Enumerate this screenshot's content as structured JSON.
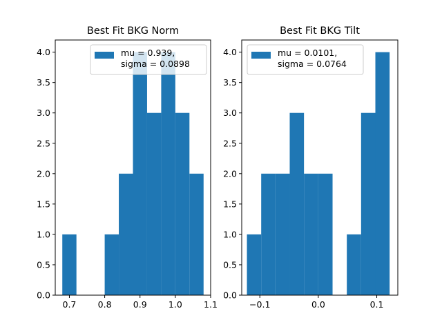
{
  "chart_data": [
    {
      "type": "bar",
      "title": "Best Fit BKG Norm",
      "xlabel": "",
      "ylabel": "",
      "xlim": [
        0.66,
        1.1
      ],
      "ylim": [
        0,
        4.2
      ],
      "xticks": [
        {
          "value": 0.7,
          "label": "0.7"
        },
        {
          "value": 0.8,
          "label": "0.8"
        },
        {
          "value": 0.9,
          "label": "0.9"
        },
        {
          "value": 1.0,
          "label": "1.0"
        },
        {
          "value": 1.1,
          "label": "1.1"
        }
      ],
      "yticks": [
        {
          "value": 0.0,
          "label": "0.0"
        },
        {
          "value": 0.5,
          "label": "0.5"
        },
        {
          "value": 1.0,
          "label": "1.0"
        },
        {
          "value": 1.5,
          "label": "1.5"
        },
        {
          "value": 2.0,
          "label": "2.0"
        },
        {
          "value": 2.5,
          "label": "2.5"
        },
        {
          "value": 3.0,
          "label": "3.0"
        },
        {
          "value": 3.5,
          "label": "3.5"
        },
        {
          "value": 4.0,
          "label": "4.0"
        }
      ],
      "bin_edges": [
        0.68,
        0.72,
        0.76,
        0.8,
        0.84,
        0.88,
        0.92,
        0.96,
        1.0,
        1.04,
        1.08
      ],
      "counts": [
        1,
        0,
        0,
        1,
        2,
        4,
        3,
        4,
        3,
        2
      ],
      "bar_color": "#1f77b4",
      "legend": {
        "position": "upper right",
        "lines": [
          "mu = 0.939,",
          "sigma = 0.0898"
        ]
      }
    },
    {
      "type": "bar",
      "title": "Best Fit BKG Tilt",
      "xlabel": "",
      "ylabel": "",
      "xlim": [
        -0.131,
        0.136
      ],
      "ylim": [
        0,
        4.2
      ],
      "xticks": [
        {
          "value": -0.1,
          "label": "−0.1"
        },
        {
          "value": 0.0,
          "label": "0.0"
        },
        {
          "value": 0.1,
          "label": "0.1"
        }
      ],
      "yticks": [
        {
          "value": 0.0,
          "label": "0.0"
        },
        {
          "value": 0.5,
          "label": "0.5"
        },
        {
          "value": 1.0,
          "label": "1.0"
        },
        {
          "value": 1.5,
          "label": "1.5"
        },
        {
          "value": 2.0,
          "label": "2.0"
        },
        {
          "value": 2.5,
          "label": "2.5"
        },
        {
          "value": 3.0,
          "label": "3.0"
        },
        {
          "value": 3.5,
          "label": "3.5"
        },
        {
          "value": 4.0,
          "label": "4.0"
        }
      ],
      "bin_edges": [
        -0.1221,
        -0.0977,
        -0.0733,
        -0.0489,
        -0.0245,
        0.0,
        0.0244,
        0.0488,
        0.0732,
        0.0976,
        0.122
      ],
      "counts": [
        1,
        2,
        2,
        3,
        2,
        2,
        0,
        1,
        3,
        4
      ],
      "bar_color": "#1f77b4",
      "legend": {
        "position": "upper left",
        "lines": [
          "mu = 0.0101,",
          "sigma = 0.0764"
        ]
      }
    }
  ]
}
